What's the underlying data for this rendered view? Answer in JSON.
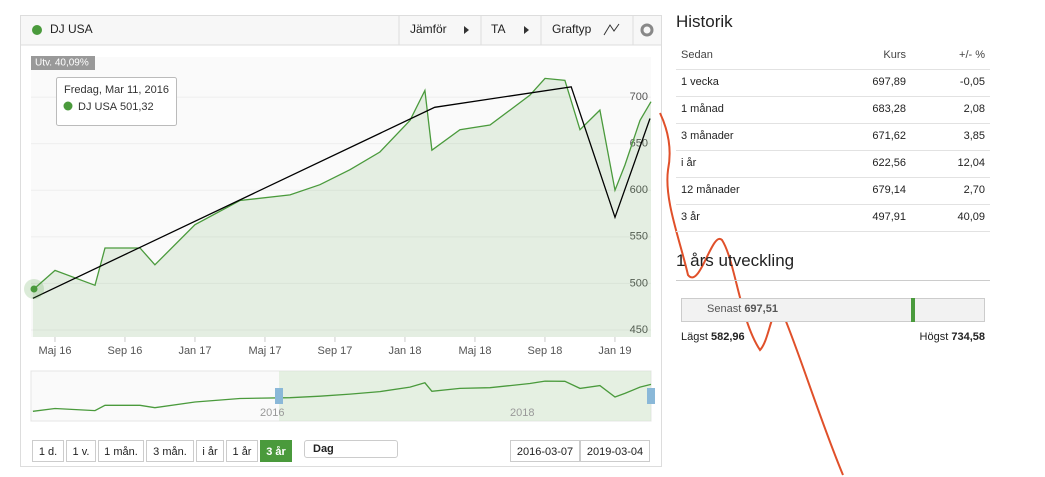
{
  "toolbar": {
    "compare": "Jämför",
    "ta": "TA",
    "chart_type": "Graftyp"
  },
  "chart_data": {
    "type": "line",
    "series": [
      {
        "name": "DJ USA",
        "color": "#4a9a3c",
        "x": [
          0.74,
          2,
          4.29,
          4.86,
          6.86,
          7.71,
          10,
          12.57,
          15.43,
          17.14,
          18.86,
          20.57,
          22.29,
          23.14,
          23.54,
          25.14,
          26.86,
          28,
          29.14,
          30,
          31.14,
          32,
          33.14,
          34,
          34.57,
          35.43,
          36.06
        ],
        "values": [
          493,
          514,
          498,
          538,
          538,
          520,
          563,
          589,
          595,
          606,
          622,
          641,
          675,
          707,
          643,
          665,
          670,
          686,
          702,
          720,
          718,
          665,
          686,
          600,
          627,
          675,
          695
        ]
      }
    ],
    "trendline": {
      "x": [
        0.74,
        23.7,
        31.5,
        34,
        36
      ],
      "values": [
        484,
        689,
        711,
        571,
        677
      ],
      "color": "#000000"
    },
    "xlim": [
      0.63,
      36.06
    ],
    "ylim": [
      442.5,
      743
    ],
    "yticks": [
      450,
      500,
      550,
      600,
      650,
      700
    ],
    "xticks": [
      {
        "value": 2,
        "label": "Maj 16"
      },
      {
        "value": 6,
        "label": "Sep 16"
      },
      {
        "value": 10,
        "label": "Jan 17"
      },
      {
        "value": 14,
        "label": "Maj 17"
      },
      {
        "value": 18,
        "label": "Sep 17"
      },
      {
        "value": 22,
        "label": "Jan 18"
      },
      {
        "value": 26,
        "label": "Maj 18"
      },
      {
        "value": 30,
        "label": "Sep 18"
      },
      {
        "value": 34,
        "label": "Jan 19"
      }
    ],
    "change_label": "Utv. 40,09%",
    "tooltip": {
      "date": "Fredag, Mar 11, 2016",
      "value": "501,32"
    }
  },
  "navigator": {
    "labels": [
      "2016",
      "2018"
    ]
  },
  "range_buttons": [
    "1 d.",
    "1 v.",
    "1 mån.",
    "3 mån.",
    "i år",
    "1 år",
    "3 år"
  ],
  "interval": "Dag",
  "dates": [
    "2016-03-07",
    "2019-03-04"
  ],
  "history": {
    "title": "Historik",
    "headers": [
      "Sedan",
      "Kurs",
      "+/- %"
    ],
    "rows": [
      [
        "1 vecka",
        "697,89",
        "-0,05"
      ],
      [
        "1 månad",
        "683,28",
        "2,08"
      ],
      [
        "3 månader",
        "671,62",
        "3,85"
      ],
      [
        "i år",
        "622,56",
        "12,04"
      ],
      [
        "12 månader",
        "679,14",
        "2,70"
      ],
      [
        "3 år",
        "497,91",
        "40,09"
      ]
    ]
  },
  "development": {
    "title": "1 års utveckling",
    "latest_label": "Senast",
    "latest": "697,51",
    "low_label": "Lägst",
    "low": "582,96",
    "high_label": "Högst",
    "high": "734,58"
  }
}
